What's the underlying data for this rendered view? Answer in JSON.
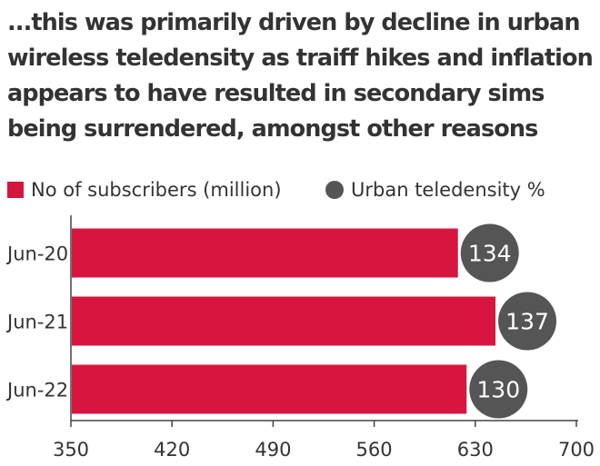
{
  "title": "...this was primarily driven by decline in urban wireless teledensity as traiff hikes and inflation appears to have resulted in secondary sims being surrendered, amongst other reasons",
  "colors": {
    "bar": "#d6163f",
    "bubble": "#555555",
    "bubble_text": "#ffffff",
    "text": "#333333",
    "axis": "#444444"
  },
  "chart_data": {
    "type": "bar",
    "orientation": "horizontal",
    "categories": [
      "Jun-20",
      "Jun-21",
      "Jun-22"
    ],
    "series": [
      {
        "name": "No of subscribers (million)",
        "values": [
          618,
          644,
          624
        ]
      },
      {
        "name": "Urban teledensity %",
        "values": [
          134,
          137,
          130
        ]
      }
    ],
    "xlim": [
      350,
      700
    ],
    "xticks": [
      "350",
      "420",
      "490",
      "560",
      "630",
      "700"
    ],
    "legend": "top-left",
    "grid": false
  }
}
